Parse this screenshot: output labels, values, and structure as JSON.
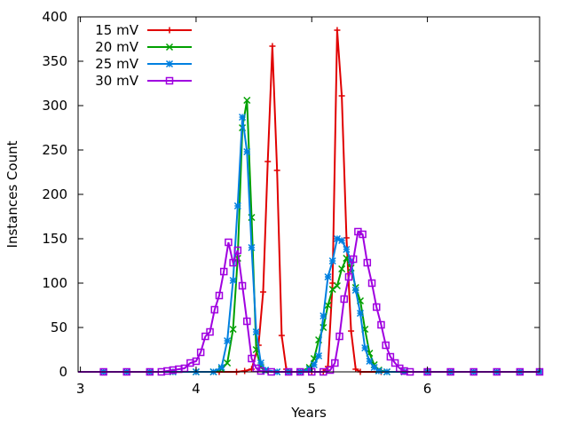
{
  "chart_data": {
    "type": "line",
    "xlabel": "Years",
    "ylabel": "Instances Count",
    "xlim": [
      2.98,
      6.97
    ],
    "ylim": [
      0,
      400
    ],
    "x_ticks": [
      3,
      4,
      5,
      6
    ],
    "y_ticks": [
      0,
      50,
      100,
      150,
      200,
      250,
      300,
      350,
      400
    ],
    "grid": false,
    "legend_position": "top-left",
    "series": [
      {
        "name": "15 mV",
        "color": "#e00000",
        "marker": "plus",
        "points": [
          [
            2.98,
            0
          ],
          [
            3.2,
            0
          ],
          [
            3.4,
            0
          ],
          [
            3.6,
            0
          ],
          [
            3.8,
            0
          ],
          [
            4.0,
            0
          ],
          [
            4.2,
            0
          ],
          [
            4.35,
            0
          ],
          [
            4.42,
            1
          ],
          [
            4.48,
            3
          ],
          [
            4.54,
            30
          ],
          [
            4.58,
            90
          ],
          [
            4.62,
            237
          ],
          [
            4.66,
            367
          ],
          [
            4.7,
            227
          ],
          [
            4.74,
            41
          ],
          [
            4.78,
            3
          ],
          [
            4.82,
            0
          ],
          [
            4.9,
            0
          ],
          [
            5.0,
            0
          ],
          [
            5.1,
            0
          ],
          [
            5.14,
            6
          ],
          [
            5.18,
            100
          ],
          [
            5.22,
            385
          ],
          [
            5.26,
            311
          ],
          [
            5.3,
            151
          ],
          [
            5.34,
            46
          ],
          [
            5.38,
            3
          ],
          [
            5.42,
            0
          ],
          [
            5.6,
            0
          ],
          [
            5.8,
            0
          ],
          [
            6.0,
            0
          ],
          [
            6.2,
            0
          ],
          [
            6.4,
            0
          ],
          [
            6.6,
            0
          ],
          [
            6.8,
            0
          ],
          [
            6.97,
            0
          ]
        ]
      },
      {
        "name": "20 mV",
        "color": "#00a000",
        "marker": "cross",
        "points": [
          [
            2.98,
            0
          ],
          [
            3.2,
            0
          ],
          [
            3.4,
            0
          ],
          [
            3.6,
            0
          ],
          [
            3.8,
            0
          ],
          [
            4.0,
            0
          ],
          [
            4.15,
            0
          ],
          [
            4.22,
            3
          ],
          [
            4.27,
            10
          ],
          [
            4.32,
            48
          ],
          [
            4.36,
            128
          ],
          [
            4.4,
            275
          ],
          [
            4.44,
            306
          ],
          [
            4.48,
            174
          ],
          [
            4.52,
            25
          ],
          [
            4.56,
            5
          ],
          [
            4.6,
            1
          ],
          [
            4.7,
            0
          ],
          [
            4.8,
            0
          ],
          [
            4.9,
            0
          ],
          [
            4.98,
            5
          ],
          [
            5.02,
            15
          ],
          [
            5.06,
            36
          ],
          [
            5.1,
            50
          ],
          [
            5.14,
            75
          ],
          [
            5.18,
            93
          ],
          [
            5.22,
            97
          ],
          [
            5.26,
            116
          ],
          [
            5.3,
            128
          ],
          [
            5.34,
            117
          ],
          [
            5.38,
            95
          ],
          [
            5.42,
            80
          ],
          [
            5.46,
            48
          ],
          [
            5.5,
            21
          ],
          [
            5.54,
            8
          ],
          [
            5.58,
            2
          ],
          [
            5.65,
            0
          ],
          [
            5.8,
            0
          ],
          [
            6.0,
            0
          ],
          [
            6.2,
            0
          ],
          [
            6.4,
            0
          ],
          [
            6.6,
            0
          ],
          [
            6.8,
            0
          ],
          [
            6.97,
            0
          ]
        ]
      },
      {
        "name": "25 mV",
        "color": "#0080e0",
        "marker": "star",
        "points": [
          [
            2.98,
            0
          ],
          [
            3.2,
            0
          ],
          [
            3.4,
            0
          ],
          [
            3.6,
            0
          ],
          [
            3.8,
            0
          ],
          [
            4.0,
            0
          ],
          [
            4.15,
            0
          ],
          [
            4.22,
            5
          ],
          [
            4.27,
            35
          ],
          [
            4.32,
            103
          ],
          [
            4.36,
            187
          ],
          [
            4.4,
            287
          ],
          [
            4.44,
            248
          ],
          [
            4.48,
            140
          ],
          [
            4.52,
            45
          ],
          [
            4.56,
            10
          ],
          [
            4.6,
            2
          ],
          [
            4.7,
            0
          ],
          [
            4.8,
            0
          ],
          [
            4.9,
            0
          ],
          [
            4.98,
            3
          ],
          [
            5.02,
            8
          ],
          [
            5.06,
            18
          ],
          [
            5.1,
            63
          ],
          [
            5.14,
            107
          ],
          [
            5.18,
            125
          ],
          [
            5.22,
            150
          ],
          [
            5.26,
            148
          ],
          [
            5.3,
            138
          ],
          [
            5.34,
            125
          ],
          [
            5.38,
            92
          ],
          [
            5.42,
            66
          ],
          [
            5.46,
            27
          ],
          [
            5.5,
            12
          ],
          [
            5.54,
            5
          ],
          [
            5.58,
            1
          ],
          [
            5.65,
            0
          ],
          [
            5.8,
            0
          ],
          [
            6.0,
            0
          ],
          [
            6.2,
            0
          ],
          [
            6.4,
            0
          ],
          [
            6.6,
            0
          ],
          [
            6.8,
            0
          ],
          [
            6.97,
            0
          ]
        ]
      },
      {
        "name": "30 mV",
        "color": "#a000e0",
        "marker": "square",
        "points": [
          [
            2.98,
            0
          ],
          [
            3.2,
            0
          ],
          [
            3.4,
            0
          ],
          [
            3.6,
            0
          ],
          [
            3.7,
            0
          ],
          [
            3.75,
            1
          ],
          [
            3.8,
            2
          ],
          [
            3.85,
            3
          ],
          [
            3.9,
            4
          ],
          [
            3.95,
            10
          ],
          [
            4.0,
            12
          ],
          [
            4.04,
            22
          ],
          [
            4.08,
            40
          ],
          [
            4.12,
            45
          ],
          [
            4.16,
            70
          ],
          [
            4.2,
            86
          ],
          [
            4.24,
            113
          ],
          [
            4.28,
            146
          ],
          [
            4.32,
            123
          ],
          [
            4.36,
            137
          ],
          [
            4.4,
            97
          ],
          [
            4.44,
            57
          ],
          [
            4.48,
            15
          ],
          [
            4.52,
            4
          ],
          [
            4.56,
            1
          ],
          [
            4.65,
            0
          ],
          [
            4.8,
            0
          ],
          [
            4.9,
            0
          ],
          [
            5.0,
            0
          ],
          [
            5.1,
            0
          ],
          [
            5.16,
            2
          ],
          [
            5.2,
            10
          ],
          [
            5.24,
            40
          ],
          [
            5.28,
            82
          ],
          [
            5.32,
            107
          ],
          [
            5.36,
            127
          ],
          [
            5.4,
            158
          ],
          [
            5.44,
            155
          ],
          [
            5.48,
            123
          ],
          [
            5.52,
            100
          ],
          [
            5.56,
            73
          ],
          [
            5.6,
            53
          ],
          [
            5.64,
            30
          ],
          [
            5.68,
            17
          ],
          [
            5.72,
            10
          ],
          [
            5.76,
            4
          ],
          [
            5.8,
            1
          ],
          [
            5.85,
            0
          ],
          [
            6.0,
            0
          ],
          [
            6.2,
            0
          ],
          [
            6.4,
            0
          ],
          [
            6.6,
            0
          ],
          [
            6.8,
            0
          ],
          [
            6.97,
            0
          ]
        ]
      }
    ]
  }
}
